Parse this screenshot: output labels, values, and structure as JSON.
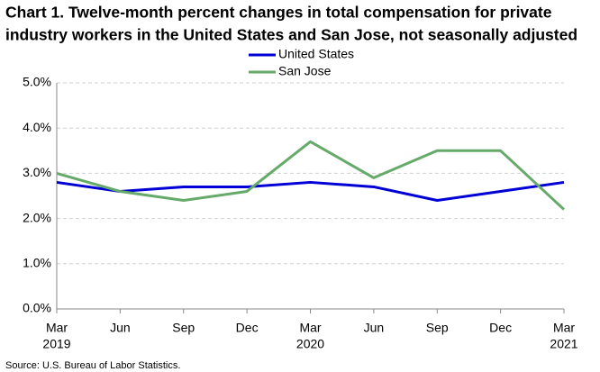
{
  "chart_data": {
    "type": "line",
    "title_lines": [
      "Chart 1. Twelve-month percent changes in total compensation for private",
      "industry workers in the United States and San Jose, not seasonally adjusted"
    ],
    "source": "Source: U.S. Bureau of Labor Statistics.",
    "categories": [
      "Mar",
      "Jun",
      "Sep",
      "Dec",
      "Mar",
      "Jun",
      "Sep",
      "Dec",
      "Mar"
    ],
    "years": [
      "2019",
      null,
      null,
      null,
      "2020",
      null,
      null,
      null,
      "2021"
    ],
    "series": [
      {
        "name": "United States",
        "color": "#0000d6",
        "values": [
          2.8,
          2.6,
          2.7,
          2.7,
          2.8,
          2.7,
          2.4,
          2.6,
          2.8
        ]
      },
      {
        "name": "San Jose",
        "color": "#66aa6a",
        "values": [
          3.0,
          2.6,
          2.4,
          2.6,
          3.7,
          2.9,
          3.5,
          3.5,
          2.2
        ]
      }
    ],
    "ylim": [
      0,
      5
    ],
    "yticks": [
      {
        "value": 0,
        "label": "0.0%"
      },
      {
        "value": 1,
        "label": "1.0%"
      },
      {
        "value": 2,
        "label": "2.0%"
      },
      {
        "value": 3,
        "label": "3.0%"
      },
      {
        "value": 4,
        "label": "4.0%"
      },
      {
        "value": 5,
        "label": "5.0%"
      }
    ],
    "grid": true
  }
}
